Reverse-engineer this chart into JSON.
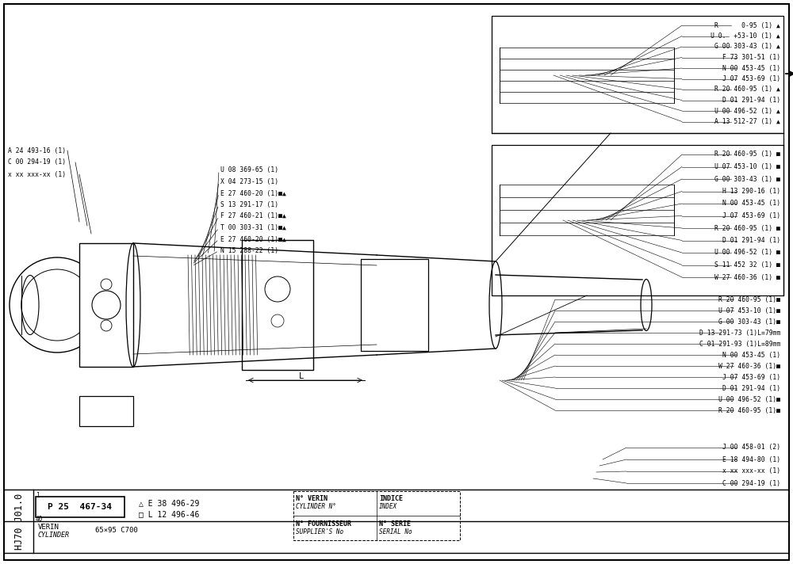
{
  "bg_color": "#ffffff",
  "text_color": "#000000",
  "fig_width": 10.0,
  "fig_height": 7.12,
  "top_right_labels": [
    "R      0-95 (1) ▲",
    "U 0.  +53-10 (1) ▲",
    "G 00 303-43 (1) ▲",
    "F 73 301-51 (1)",
    "N 00 453-45 (1)",
    "J 07 453-69 (1)",
    "R 20 460-95 (1) ▲",
    "D 01 291-94 (1)",
    "U 00 496-52 (1) ▲",
    "A 13 512-27 (1) ▲"
  ],
  "mid_right_labels": [
    "R 20 460-95 (1) ■",
    "U 07 453-10 (1) ■",
    "G 00 303-43 (1) ■",
    "H 13 290-16 (1)",
    "N 00 453-45 (1)",
    "J 07 453-69 (1)",
    "R 20 460-95 (1) ■",
    "D 01 291-94 (1)",
    "U 00 496-52 (1) ■",
    "S 11 452 32 (1) ■",
    "W 27 460-36 (1) ■"
  ],
  "bot_right_labels": [
    "R 20 460-95 (1)■",
    "U 07 453-10 (1)■",
    "G 00 303-43 (1)■",
    "D 13 291-73 (1)L=79mm",
    "C 01 291-93 (1)L=89mm",
    "N 00 453-45 (1)",
    "W 27 460-36 (1)■",
    "J 07 453-69 (1)",
    "D 01 291-94 (1)",
    "U 00 496-52 (1)■",
    "R 20 460-95 (1)■"
  ],
  "far_bot_right_labels": [
    "J 00 458-01 (2)",
    "E 18 494-80 (1)",
    "x xx xxx-xx (1)",
    "C 00 294-19 (1)"
  ],
  "left_labels": [
    "A 24 493-16 (1)",
    "C 00 294-19 (1)",
    "x xx xxx-xx (1)"
  ],
  "center_labels": [
    "U 08 369-65 (1)",
    "X 04 273-15 (1)",
    "E 27 460-20 (1)■▲",
    "S 13 291-17 (1)",
    "F 27 460-21 (1)■▲",
    "T 00 303-31 (1)■▲",
    "E 27 460-20 (1)■▲",
    "N 15 288-22 (1)"
  ],
  "part_number": "P 25  467-34",
  "page_ref": "HJ70 J01.0",
  "verin": "VERIN",
  "cylinder_it": "CYLINDER",
  "size": "65×95 C700",
  "tri_ref": "△ E 38 496-29",
  "sq_ref": "□ L 12 496-46",
  "info_line1a": "N° VERIN",
  "info_line1b": "INDICE",
  "info_line2a": "CYLINDER N°",
  "info_line2b": "INDEX",
  "info_line3a": "N° FOURNISSEUR",
  "info_line3b": "N° SERIE",
  "info_line4a": "SUPPLIER'S No",
  "info_line4b": "SERIAL No"
}
